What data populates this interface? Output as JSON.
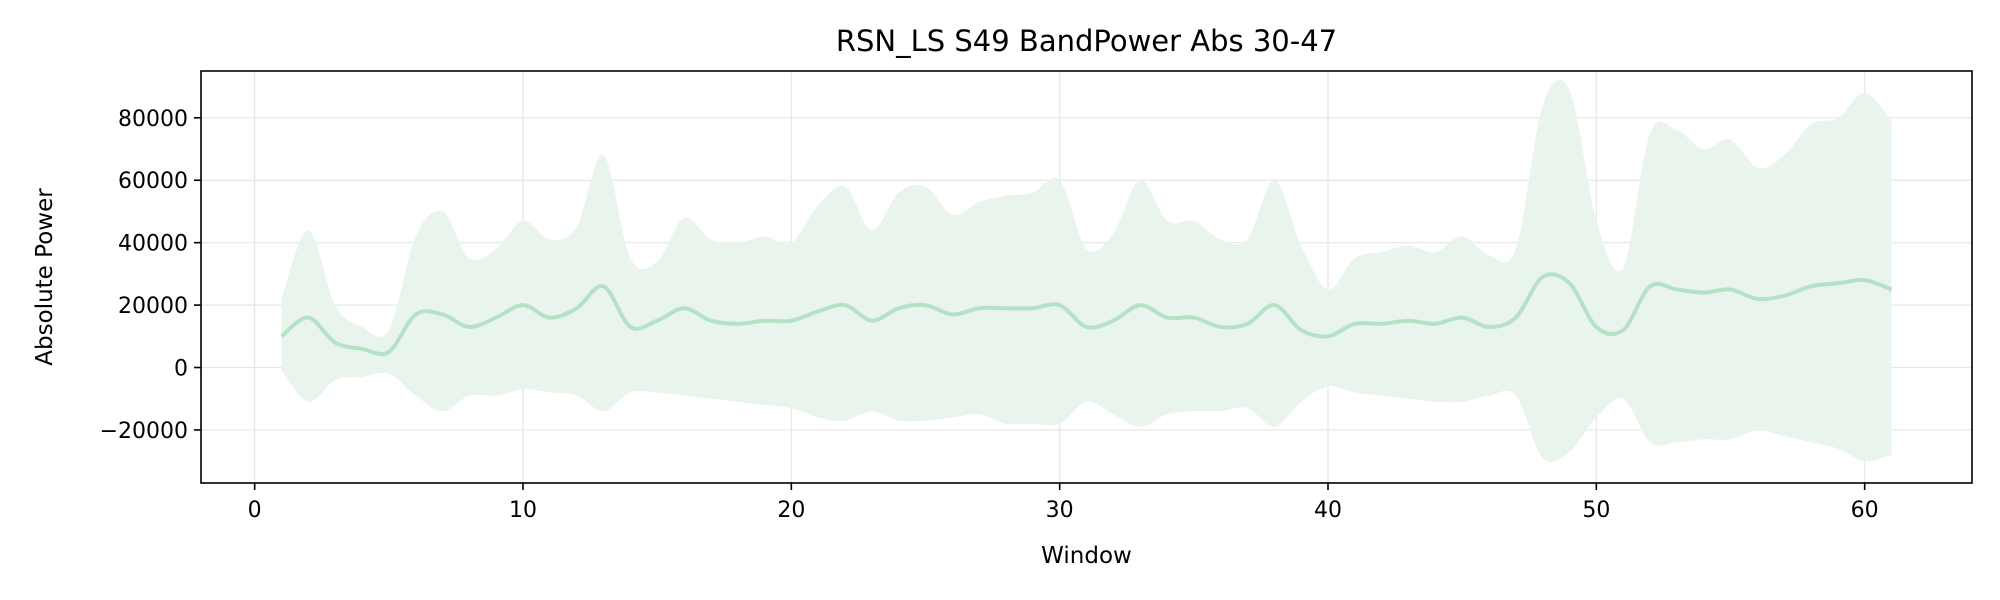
{
  "chart_data": {
    "type": "area",
    "title": "RSN_LS S49 BandPower Abs 30-47",
    "xlabel": "Window",
    "ylabel": "Absolute Power",
    "xlim": [
      -2,
      64
    ],
    "ylim": [
      -37000,
      95000
    ],
    "grid": true,
    "colors": {
      "line": "#b5e2c7",
      "band": "#e9f5ec",
      "grid": "#e6e6e6",
      "frame": "#000000"
    },
    "x_ticks": [
      0,
      10,
      20,
      30,
      40,
      50,
      60
    ],
    "x_tick_labels": [
      "0",
      "10",
      "20",
      "30",
      "40",
      "50",
      "60"
    ],
    "y_ticks": [
      -20000,
      0,
      20000,
      40000,
      60000,
      80000
    ],
    "y_tick_labels": [
      "−20000",
      "0",
      "20000",
      "40000",
      "60000",
      "80000"
    ],
    "series": [
      {
        "name": "mean",
        "x": [
          1,
          2,
          3,
          4,
          5,
          6,
          7,
          8,
          9,
          10,
          11,
          12,
          13,
          14,
          15,
          16,
          17,
          18,
          19,
          20,
          21,
          22,
          23,
          24,
          25,
          26,
          27,
          28,
          29,
          30,
          31,
          32,
          33,
          34,
          35,
          36,
          37,
          38,
          39,
          40,
          41,
          42,
          43,
          44,
          45,
          46,
          47,
          48,
          49,
          50,
          51,
          52,
          53,
          54,
          55,
          56,
          57,
          58,
          59,
          60,
          61
        ],
        "values": [
          10000,
          16000,
          8000,
          6000,
          5000,
          17000,
          17000,
          13000,
          16000,
          20000,
          16000,
          19000,
          26000,
          13000,
          15000,
          19000,
          15000,
          14000,
          15000,
          15000,
          18000,
          20000,
          15000,
          19000,
          20000,
          17000,
          19000,
          19000,
          19000,
          20000,
          13000,
          15000,
          20000,
          16000,
          16000,
          13000,
          14000,
          20000,
          12000,
          10000,
          14000,
          14000,
          15000,
          14000,
          16000,
          13000,
          16000,
          29000,
          27000,
          13000,
          12000,
          26000,
          25000,
          24000,
          25000,
          22000,
          23000,
          26000,
          27000,
          28000,
          25000
        ]
      },
      {
        "name": "upper",
        "x": [
          1,
          2,
          3,
          4,
          5,
          6,
          7,
          8,
          9,
          10,
          11,
          12,
          13,
          14,
          15,
          16,
          17,
          18,
          19,
          20,
          21,
          22,
          23,
          24,
          25,
          26,
          27,
          28,
          29,
          30,
          31,
          32,
          33,
          34,
          35,
          36,
          37,
          38,
          39,
          40,
          41,
          42,
          43,
          44,
          45,
          46,
          47,
          48,
          49,
          50,
          51,
          52,
          53,
          54,
          55,
          56,
          57,
          58,
          59,
          60,
          61
        ],
        "values": [
          22000,
          44000,
          20000,
          13000,
          12000,
          42000,
          50000,
          35000,
          38000,
          47000,
          41000,
          45000,
          68000,
          35000,
          34000,
          48000,
          41000,
          40000,
          42000,
          40000,
          52000,
          58000,
          44000,
          56000,
          58000,
          49000,
          53000,
          55000,
          56000,
          60000,
          38000,
          43000,
          60000,
          47000,
          47000,
          41000,
          41000,
          60000,
          39000,
          25000,
          35000,
          37000,
          39000,
          37000,
          42000,
          36000,
          38000,
          84000,
          89000,
          47000,
          32000,
          75000,
          76000,
          70000,
          73000,
          64000,
          68000,
          78000,
          80000,
          88000,
          79000
        ]
      },
      {
        "name": "lower",
        "x": [
          1,
          2,
          3,
          4,
          5,
          6,
          7,
          8,
          9,
          10,
          11,
          12,
          13,
          14,
          15,
          16,
          17,
          18,
          19,
          20,
          21,
          22,
          23,
          24,
          25,
          26,
          27,
          28,
          29,
          30,
          31,
          32,
          33,
          34,
          35,
          36,
          37,
          38,
          39,
          40,
          41,
          42,
          43,
          44,
          45,
          46,
          47,
          48,
          49,
          50,
          51,
          52,
          53,
          54,
          55,
          56,
          57,
          58,
          59,
          60,
          61
        ],
        "values": [
          -1000,
          -11000,
          -4000,
          -3000,
          -2000,
          -9000,
          -14000,
          -9000,
          -9000,
          -7000,
          -8000,
          -9000,
          -14000,
          -8000,
          -8000,
          -9000,
          -10000,
          -11000,
          -12000,
          -13000,
          -16000,
          -17000,
          -14000,
          -17000,
          -17000,
          -16000,
          -15000,
          -18000,
          -18000,
          -18000,
          -11000,
          -15000,
          -19000,
          -15000,
          -14000,
          -14000,
          -13000,
          -19000,
          -11000,
          -6000,
          -8000,
          -9000,
          -10000,
          -11000,
          -11000,
          -9000,
          -9000,
          -29000,
          -27000,
          -16000,
          -10000,
          -24000,
          -24000,
          -23000,
          -23000,
          -20000,
          -22000,
          -24000,
          -26000,
          -30000,
          -28000
        ]
      }
    ]
  }
}
